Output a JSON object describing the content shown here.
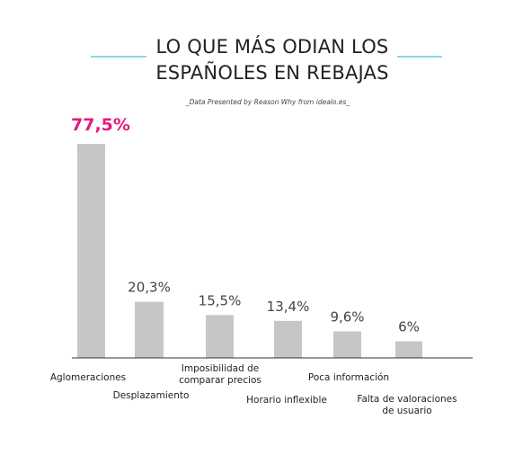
{
  "title_lines": [
    "LO QUE MÁS ODIAN LOS",
    "ESPAÑOLES EN REBAJAS"
  ],
  "subtitle": "_Data Presented by Reason Why from idealo.es_",
  "colors": {
    "bar": "#c6c6c6",
    "highlight": "#e6197d",
    "accent_line": "#3fc3d8",
    "axis": "#333333"
  },
  "chart_data": {
    "type": "bar",
    "title": "LO QUE MÁS ODIAN LOS ESPAÑOLES EN REBAJAS",
    "subtitle": "_Data Presented by Reason Why from idealo.es_",
    "categories": [
      "Aglomeraciones",
      "Desplazamiento",
      "Imposibilidad de comparar precios",
      "Horario inflexible",
      "Poca información",
      "Falta de valoraciones de usuario"
    ],
    "category_label_lines": [
      [
        "Aglomeraciones"
      ],
      [
        "Desplazamiento"
      ],
      [
        "Imposibilidad de",
        "comparar precios"
      ],
      [
        "Horario inflexible"
      ],
      [
        "Poca información"
      ],
      [
        "Falta de valoraciones",
        "de usuario"
      ]
    ],
    "values": [
      77.5,
      20.3,
      15.5,
      13.4,
      9.6,
      6
    ],
    "value_labels": [
      "77,5%",
      "20,3%",
      "15,5%",
      "13,4%",
      "9,6%",
      "6%"
    ],
    "highlight_index": 0,
    "unit": "%",
    "ylim": [
      0,
      80
    ],
    "grid": false,
    "legend": "none",
    "xlabel": "",
    "ylabel": ""
  }
}
